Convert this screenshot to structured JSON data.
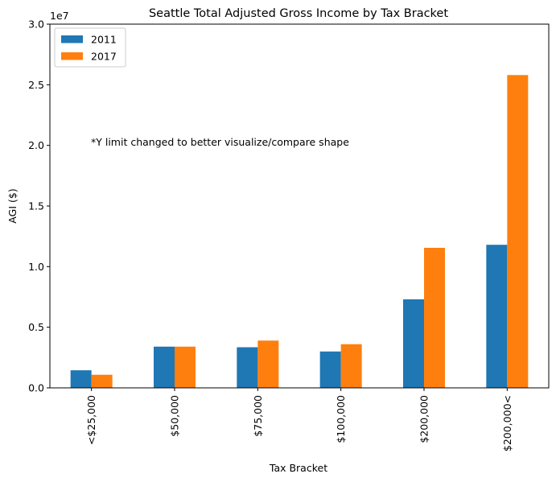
{
  "chart_data": {
    "type": "bar",
    "title": "Seattle Total Adjusted Gross Income by Tax Bracket",
    "xlabel": "Tax Bracket",
    "ylabel": "AGI ($)",
    "y_offset_label": "1e7",
    "y_scale": 10000000,
    "ylim": [
      0,
      30000000
    ],
    "yticks": [
      0,
      5000000,
      10000000,
      15000000,
      20000000,
      25000000,
      30000000
    ],
    "ytick_labels": [
      "0.0",
      "0.5",
      "1.0",
      "1.5",
      "2.0",
      "2.5",
      "3.0"
    ],
    "categories": [
      "<$25,000",
      "$50,000",
      "$75,000",
      "$100,000",
      "$200,000",
      "$200,000<"
    ],
    "series": [
      {
        "name": "2011",
        "color": "#1f77b4",
        "values": [
          1450000,
          3400000,
          3350000,
          3000000,
          7300000,
          11800000
        ]
      },
      {
        "name": "2017",
        "color": "#ff7f0e",
        "values": [
          1080000,
          3400000,
          3900000,
          3600000,
          11550000,
          25800000
        ]
      }
    ],
    "legend_position": "top-left",
    "grid": false,
    "annotation": "*Y limit changed to better visualize/compare shape"
  }
}
